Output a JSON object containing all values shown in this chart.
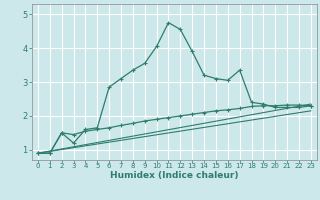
{
  "xlabel": "Humidex (Indice chaleur)",
  "bg_color": "#cde8ea",
  "line_color": "#2e7d6e",
  "grid_color": "#ffffff",
  "xlim": [
    -0.5,
    23.5
  ],
  "ylim": [
    0.7,
    5.3
  ],
  "xticks": [
    0,
    1,
    2,
    3,
    4,
    5,
    6,
    7,
    8,
    9,
    10,
    11,
    12,
    13,
    14,
    15,
    16,
    17,
    18,
    19,
    20,
    21,
    22,
    23
  ],
  "yticks": [
    1,
    2,
    3,
    4,
    5
  ],
  "curve1_x": [
    0,
    1,
    2,
    3,
    4,
    5,
    6,
    7,
    8,
    9,
    10,
    11,
    12,
    13,
    14,
    15,
    16,
    17,
    18,
    19,
    20,
    21,
    22,
    23
  ],
  "curve1_y": [
    0.9,
    0.9,
    1.5,
    1.2,
    1.6,
    1.65,
    2.85,
    3.1,
    3.35,
    3.55,
    4.05,
    4.75,
    4.55,
    3.9,
    3.2,
    3.1,
    3.05,
    3.35,
    2.4,
    2.35,
    2.25,
    2.25,
    2.25,
    2.3
  ],
  "curve2_x": [
    0,
    1,
    2,
    3,
    4,
    5,
    6,
    7,
    8,
    9,
    10,
    11,
    12,
    13,
    14,
    15,
    16,
    17,
    18,
    19,
    20,
    21,
    22,
    23
  ],
  "curve2_y": [
    0.9,
    0.9,
    1.5,
    1.45,
    1.55,
    1.6,
    1.65,
    1.72,
    1.78,
    1.85,
    1.9,
    1.95,
    2.0,
    2.05,
    2.1,
    2.15,
    2.18,
    2.22,
    2.28,
    2.3,
    2.3,
    2.32,
    2.32,
    2.3
  ],
  "line1_x": [
    0,
    23
  ],
  "line1_y": [
    0.9,
    2.35
  ],
  "line2_x": [
    0,
    23
  ],
  "line2_y": [
    0.9,
    2.15
  ]
}
